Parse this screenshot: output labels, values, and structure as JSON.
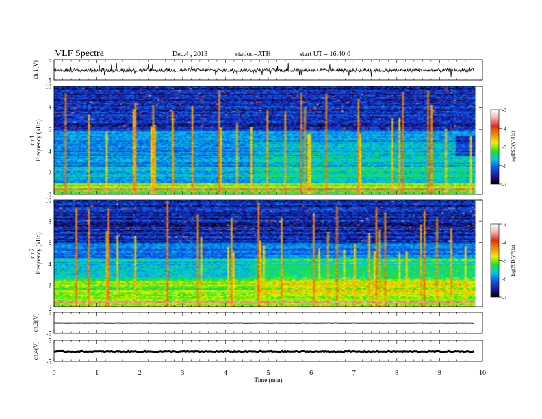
{
  "header": {
    "title": "VLF  Spectra",
    "date": "Dec.4  , 2013",
    "station": "station=ATH",
    "start_ut": "start  UT =   16:40:0"
  },
  "colorbar": {
    "label": "log(PSD(V²/Hz)",
    "ticks": [
      "-3",
      "-4",
      "-5",
      "-6",
      "-7"
    ],
    "range": [
      -7,
      -3
    ],
    "colors": [
      "#000000",
      "#1a1aa0",
      "#0b5cf0",
      "#00c8e6",
      "#1ee61e",
      "#f0f000",
      "#f08c00",
      "#e62814",
      "#f0b4b4",
      "#ffffff"
    ]
  },
  "chart_data": [
    {
      "type": "line",
      "panel": "ch1-waveform",
      "ylabel": "ch.1(V)",
      "ylim": [
        -5,
        5
      ],
      "yticks": [
        "5",
        "-5"
      ],
      "description_level": -0.2,
      "x_range_min": [
        0,
        9.8
      ]
    },
    {
      "type": "heatmap",
      "panel": "ch1-spectrogram",
      "ylabel": "ch.1\nFrequency  (kHz)",
      "ylabel_lines": [
        "ch.1",
        "Frequency  (kHz)"
      ],
      "ylim": [
        0,
        10
      ],
      "yticks": [
        "0",
        "2",
        "4",
        "6",
        "8",
        "10"
      ],
      "x_range_min": [
        0,
        9.8
      ],
      "value_range": [
        -7,
        -3
      ]
    },
    {
      "type": "heatmap",
      "panel": "ch2-spectrogram",
      "ylabel_lines": [
        "ch.2",
        "Frequency  (kHz)"
      ],
      "ylim": [
        0,
        10
      ],
      "yticks": [
        "0",
        "2",
        "4",
        "6",
        "8",
        "10"
      ],
      "x_range_min": [
        0,
        9.8
      ],
      "value_range": [
        -7,
        -3
      ]
    },
    {
      "type": "line",
      "panel": "ch3-waveform",
      "ylabel": "ch.3(V)",
      "ylim": [
        -5,
        5
      ],
      "yticks": [
        "5",
        "-5"
      ],
      "level": -0.2,
      "x_range_min": [
        0,
        9.8
      ]
    },
    {
      "type": "line",
      "panel": "ch4-waveform",
      "ylabel": "ch.4(V)",
      "ylim": [
        -5,
        5
      ],
      "yticks": [
        "5",
        "-5"
      ],
      "level": -0.2,
      "x_range_min": [
        0,
        9.8
      ]
    }
  ],
  "xaxis": {
    "label": "Time  (min)",
    "range": [
      0,
      10
    ],
    "ticks": [
      "0",
      "1",
      "2",
      "3",
      "4",
      "5",
      "6",
      "7",
      "8",
      "9",
      "10"
    ]
  }
}
